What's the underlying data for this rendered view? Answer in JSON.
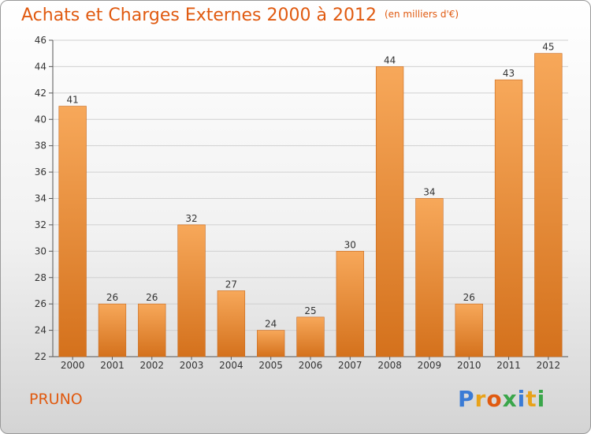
{
  "header": {
    "title": "Achats et Charges Externes 2000 à 2012",
    "unit": "(en milliers d'€)"
  },
  "footer": {
    "commune": "PRUNO",
    "logo_letters": [
      "P",
      "r",
      "o",
      "x",
      "i",
      "t",
      "i"
    ],
    "logo_colors": [
      "#3a7bd5",
      "#e8a21a",
      "#e05a10",
      "#3aa64a",
      "#3a7bd5",
      "#e8a21a",
      "#3aa64a"
    ]
  },
  "chart_data": {
    "type": "bar",
    "title": "Achats et Charges Externes 2000 à 2012",
    "subtitle": "(en milliers d'€)",
    "categories": [
      "2000",
      "2001",
      "2002",
      "2003",
      "2004",
      "2005",
      "2006",
      "2007",
      "2008",
      "2009",
      "2010",
      "2011",
      "2012"
    ],
    "values": [
      41,
      26,
      26,
      32,
      27,
      24,
      25,
      30,
      44,
      34,
      26,
      43,
      45
    ],
    "ylim": [
      22,
      46
    ],
    "yticks": [
      22,
      24,
      26,
      28,
      30,
      32,
      34,
      36,
      38,
      40,
      42,
      44,
      46
    ],
    "grid": true,
    "bar_color_top": "#f7a85a",
    "bar_color_bottom": "#d4711c",
    "accent_color": "#e05a10"
  }
}
